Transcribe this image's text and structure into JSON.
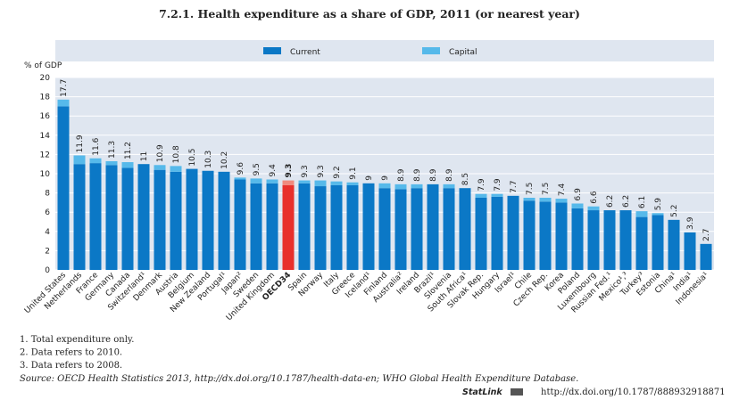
{
  "chart_data": {
    "type": "stacked_bar",
    "title": "7.2.1. Health expenditure as a share of GDP, 2011 (or nearest year)",
    "y_label": "% of GDP",
    "categories": [
      "United States",
      "Netherlands",
      "France",
      "Germany",
      "Canada",
      "Switzerland¹",
      "Denmark",
      "Austria",
      "Belgium",
      "New Zealand",
      "Portugal¹",
      "Japan²",
      "Sweden",
      "United Kingdom",
      "OECD34",
      "Spain",
      "Norway",
      "Italy",
      "Greece",
      "Iceland¹",
      "Finland",
      "Australia²",
      "Ireland",
      "Brazil¹",
      "Slovenia",
      "South Africa¹",
      "Slovak Rep.",
      "Hungary",
      "Israel¹",
      "Chile",
      "Czech Rep.",
      "Korea",
      "Poland",
      "Luxembourg",
      "Russian Fed.¹",
      "Mexico¹,³",
      "Turkey³",
      "Estonia",
      "China¹",
      "India¹",
      "Indonesia¹"
    ],
    "series": [
      {
        "name": "Current",
        "color": "#0b78c6",
        "values": [
          17.0,
          11.0,
          11.1,
          10.9,
          10.6,
          11.0,
          10.4,
          10.2,
          10.5,
          10.3,
          10.2,
          9.4,
          9.0,
          9.0,
          8.8,
          9.0,
          8.7,
          8.8,
          8.8,
          9.0,
          8.5,
          8.4,
          8.5,
          8.9,
          8.5,
          8.5,
          7.5,
          7.6,
          7.7,
          7.2,
          7.1,
          7.0,
          6.4,
          6.2,
          6.2,
          6.2,
          5.5,
          5.7,
          5.2,
          3.9,
          2.7
        ]
      },
      {
        "name": "Capital",
        "color": "#56b9ea",
        "values": [
          0.7,
          0.9,
          0.5,
          0.4,
          0.6,
          0,
          0.5,
          0.6,
          0,
          0,
          0,
          0.2,
          0.5,
          0.4,
          0.5,
          0.3,
          0.6,
          0.4,
          0.3,
          0,
          0.5,
          0.5,
          0.4,
          0,
          0.4,
          0,
          0.4,
          0.3,
          0,
          0.3,
          0.4,
          0.4,
          0.5,
          0.4,
          0,
          0,
          0.6,
          0.2,
          0,
          0,
          0
        ]
      }
    ],
    "totals": [
      17.7,
      11.9,
      11.6,
      11.3,
      11.2,
      11.0,
      10.9,
      10.8,
      10.5,
      10.3,
      10.2,
      9.6,
      9.5,
      9.4,
      9.3,
      9.3,
      9.3,
      9.2,
      9.1,
      9.0,
      9.0,
      8.9,
      8.9,
      8.9,
      8.9,
      8.5,
      7.9,
      7.9,
      7.7,
      7.5,
      7.5,
      7.4,
      6.9,
      6.6,
      6.2,
      6.2,
      6.1,
      5.9,
      5.2,
      3.9,
      2.7
    ],
    "highlight_category": "OECD34",
    "highlight_colors": [
      "#e8302c",
      "#f08a7e"
    ],
    "ylim": [
      0,
      20
    ],
    "yticks": [
      0,
      2,
      4,
      6,
      8,
      10,
      12,
      14,
      16,
      18,
      20
    ],
    "grid": true
  },
  "notes": [
    "1. Total expenditure only.",
    "2. Data refers to 2010.",
    "3. Data refers to 2008."
  ],
  "source": "Source: OECD Health Statistics 2013, http://dx.doi.org/10.1787/health-data-en; WHO Global Health Expenditure Database.",
  "statlink": "StatLink",
  "statlink_url": "http://dx.doi.org/10.1787/888932918871"
}
